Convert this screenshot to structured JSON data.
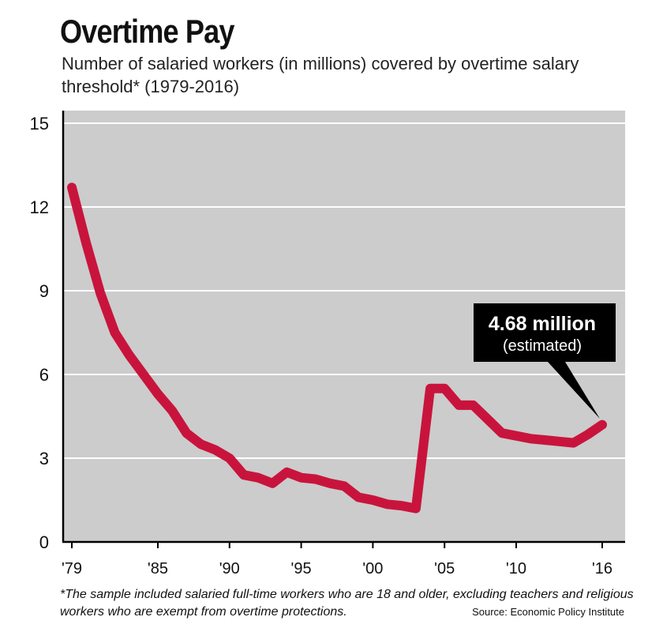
{
  "header": {
    "title": "Overtime Pay",
    "subtitle": "Number of salaried workers (in millions) covered by overtime salary threshold* (1979-2016)"
  },
  "footer": {
    "footnote": "*The sample included salaried full-time workers who are 18 and older, excluding teachers and religious workers who are exempt from overtime protections.",
    "source": "Source: Economic Policy Institute"
  },
  "callout": {
    "value": "4.68 million",
    "note": "(estimated)"
  },
  "colors": {
    "plot_background": "#cccccc",
    "line": "#c8143c",
    "gridline": "#ffffff",
    "callout_background": "#000000"
  },
  "chart_data": {
    "type": "line",
    "title": "Overtime Pay",
    "subtitle": "Number of salaried workers (in millions) covered by overtime salary threshold* (1979-2016)",
    "xlabel": "",
    "ylabel": "",
    "xlim": [
      1979,
      2016
    ],
    "ylim": [
      0,
      15
    ],
    "yticks": [
      0,
      3,
      6,
      9,
      12,
      15
    ],
    "xticks": [
      {
        "value": 1979,
        "label": "'79"
      },
      {
        "value": 1985,
        "label": "'85"
      },
      {
        "value": 1990,
        "label": "'90"
      },
      {
        "value": 1995,
        "label": "'95"
      },
      {
        "value": 2000,
        "label": "'00"
      },
      {
        "value": 2005,
        "label": "'05"
      },
      {
        "value": 2010,
        "label": "'10"
      },
      {
        "value": 2016,
        "label": "'16"
      }
    ],
    "grid": "horizontal",
    "x": [
      1979,
      1980,
      1981,
      1982,
      1983,
      1984,
      1985,
      1986,
      1987,
      1988,
      1989,
      1990,
      1991,
      1992,
      1993,
      1994,
      1995,
      1996,
      1997,
      1998,
      1999,
      2000,
      2001,
      2002,
      2003,
      2004,
      2005,
      2006,
      2007,
      2008,
      2009,
      2010,
      2011,
      2012,
      2013,
      2014,
      2015,
      2016
    ],
    "series": [
      {
        "values": [
          12.7,
          10.7,
          8.9,
          7.5,
          6.7,
          6.0,
          5.3,
          4.7,
          3.9,
          3.5,
          3.3,
          3.0,
          2.4,
          2.3,
          2.1,
          2.5,
          2.3,
          2.25,
          2.1,
          2.0,
          1.6,
          1.5,
          1.35,
          1.3,
          1.2,
          5.5,
          5.5,
          4.9,
          4.9,
          4.4,
          3.9,
          3.8,
          3.7,
          3.65,
          3.6,
          3.55,
          3.85,
          4.2
        ]
      }
    ]
  }
}
